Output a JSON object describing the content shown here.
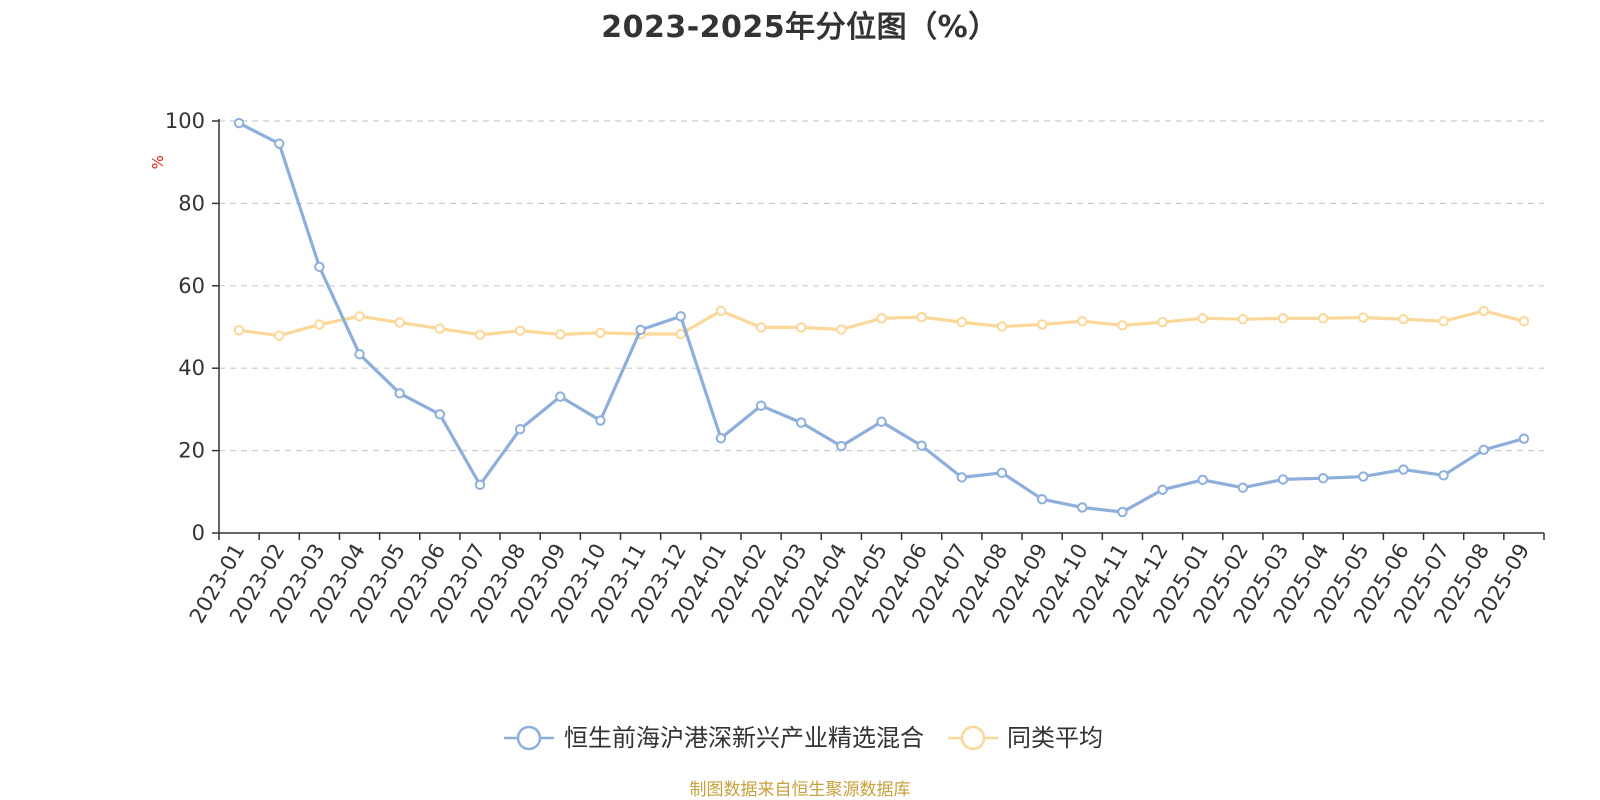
{
  "chart_data": {
    "type": "line",
    "title": "2023-2025年分位图（%）",
    "ylabel": "%",
    "ylim": [
      0,
      100
    ],
    "yticks": [
      0,
      20,
      40,
      60,
      80,
      100
    ],
    "grid": true,
    "legend_position": "bottom-center",
    "categories": [
      "2023-01",
      "2023-02",
      "2023-03",
      "2023-04",
      "2023-05",
      "2023-06",
      "2023-07",
      "2023-08",
      "2023-09",
      "2023-10",
      "2023-11",
      "2023-12",
      "2024-01",
      "2024-02",
      "2024-03",
      "2024-04",
      "2024-05",
      "2024-06",
      "2024-07",
      "2024-08",
      "2024-09",
      "2024-10",
      "2024-11",
      "2024-12",
      "2025-01",
      "2025-02",
      "2025-03",
      "2025-04",
      "2025-05",
      "2025-06",
      "2025-07",
      "2025-08",
      "2025-09"
    ],
    "series": [
      {
        "name": "恒生前海沪港深新兴产业精选混合",
        "color": "#8eaedb",
        "values": [
          99.5,
          94.5,
          64.6,
          43.4,
          33.9,
          28.8,
          11.7,
          25.2,
          33.1,
          27.3,
          49.3,
          52.6,
          23.0,
          30.9,
          26.8,
          21.1,
          27.0,
          21.2,
          13.5,
          14.6,
          8.2,
          6.2,
          5.1,
          10.5,
          12.9,
          11.0,
          13.0,
          13.3,
          13.7,
          15.4,
          14.0,
          20.2,
          22.9
        ]
      },
      {
        "name": "同类平均",
        "color": "#fbd89a",
        "values": [
          49.2,
          47.9,
          50.6,
          52.6,
          51.1,
          49.6,
          48.1,
          49.1,
          48.2,
          48.6,
          48.3,
          48.3,
          53.9,
          49.9,
          49.9,
          49.4,
          52.1,
          52.4,
          51.2,
          50.1,
          50.6,
          51.4,
          50.4,
          51.2,
          52.1,
          51.9,
          52.1,
          52.1,
          52.3,
          51.9,
          51.4,
          53.9,
          51.4
        ]
      }
    ]
  },
  "source": "制图数据来自恒生聚源数据库",
  "colors": {
    "axis": "#333333",
    "grid": "#cccccc",
    "unit": "#e02020",
    "source": "#c8a03c"
  }
}
